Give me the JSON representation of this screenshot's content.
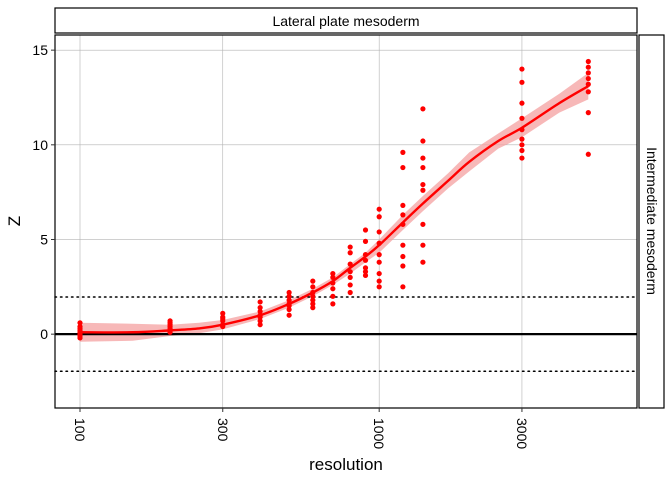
{
  "chart_data": {
    "type": "scatter",
    "facet_top_label": "Lateral plate mesoderm",
    "facet_right_label": "Intermediate mesoderm",
    "xlabel": "resolution",
    "ylabel": "Z",
    "x_scale": "log10",
    "x_ticks": [
      100,
      300,
      1000,
      3000
    ],
    "x_tick_labels": [
      "100",
      "300",
      "1000",
      "3000"
    ],
    "xlim": [
      100,
      6000
    ],
    "y_ticks": [
      0,
      5,
      10,
      15
    ],
    "y_tick_labels": [
      "0",
      "5",
      "10",
      "15"
    ],
    "ylim": [
      -3.9,
      15.8
    ],
    "grid": true,
    "colors": {
      "points": "#ff0000",
      "smooth": "#ff0000",
      "ribbon": "#f4a0a0"
    },
    "reference_lines": [
      {
        "y": 0,
        "style": "solid"
      },
      {
        "y": 1.96,
        "style": "dotted"
      },
      {
        "y": -1.96,
        "style": "dotted"
      }
    ],
    "points": [
      {
        "x": 100,
        "y": [
          0.6,
          0.4,
          0.3,
          0.2,
          0.1,
          0.0,
          -0.1,
          -0.2
        ]
      },
      {
        "x": 200,
        "y": [
          0.7,
          0.6,
          0.5,
          0.4,
          0.3,
          0.2,
          0.1
        ]
      },
      {
        "x": 300,
        "y": [
          1.1,
          0.9,
          0.8,
          0.7,
          0.5,
          0.4
        ]
      },
      {
        "x": 400,
        "y": [
          1.7,
          1.4,
          1.2,
          1.0,
          0.9,
          0.7,
          0.5
        ]
      },
      {
        "x": 500,
        "y": [
          2.2,
          2.0,
          1.8,
          1.6,
          1.5,
          1.3,
          1.0
        ]
      },
      {
        "x": 600,
        "y": [
          2.8,
          2.5,
          2.2,
          2.0,
          1.8,
          1.6,
          1.4
        ]
      },
      {
        "x": 700,
        "y": [
          3.2,
          3.0,
          2.7,
          2.4,
          2.0,
          1.6
        ]
      },
      {
        "x": 800,
        "y": [
          4.6,
          4.3,
          3.7,
          3.3,
          3.0,
          2.6,
          2.2
        ]
      },
      {
        "x": 900,
        "y": [
          5.5,
          4.9,
          4.2,
          3.9,
          3.5,
          3.3,
          3.1
        ]
      },
      {
        "x": 1000,
        "y": [
          6.6,
          6.2,
          5.4,
          4.8,
          4.2,
          3.8,
          3.2,
          2.8,
          2.5
        ]
      },
      {
        "x": 1200,
        "y": [
          9.6,
          8.8,
          6.8,
          6.3,
          5.8,
          4.7,
          4.1,
          3.6,
          2.5
        ]
      },
      {
        "x": 1400,
        "y": [
          11.9,
          10.2,
          9.3,
          8.8,
          7.9,
          7.6,
          5.8,
          4.7,
          3.8
        ]
      },
      {
        "x": 3000,
        "y": [
          14.0,
          13.3,
          12.2,
          11.4,
          10.8,
          10.3,
          10.0,
          9.7,
          9.3
        ]
      },
      {
        "x": 5000,
        "y": [
          14.4,
          14.1,
          13.8,
          13.5,
          13.2,
          12.8,
          11.7,
          9.5
        ]
      }
    ],
    "smooth_fit": {
      "x": [
        100,
        150,
        200,
        250,
        300,
        400,
        500,
        600,
        700,
        800,
        900,
        1000,
        1200,
        1400,
        1700,
        2000,
        2500,
        3000,
        4000,
        5000
      ],
      "y": [
        0.1,
        0.1,
        0.2,
        0.3,
        0.5,
        1.0,
        1.6,
        2.2,
        2.8,
        3.5,
        4.1,
        4.7,
        5.9,
        6.9,
        8.1,
        9.1,
        10.2,
        10.9,
        12.2,
        13.1
      ],
      "ymin": [
        -0.4,
        -0.35,
        -0.1,
        0.05,
        0.25,
        0.8,
        1.4,
        2.0,
        2.6,
        3.2,
        3.8,
        4.3,
        5.5,
        6.5,
        7.7,
        8.6,
        9.8,
        10.4,
        11.7,
        12.4
      ],
      "ymax": [
        0.6,
        0.55,
        0.5,
        0.6,
        0.75,
        1.2,
        1.8,
        2.4,
        3.0,
        3.7,
        4.3,
        5.0,
        6.3,
        7.3,
        8.5,
        9.6,
        10.6,
        11.4,
        12.7,
        13.8
      ]
    }
  }
}
